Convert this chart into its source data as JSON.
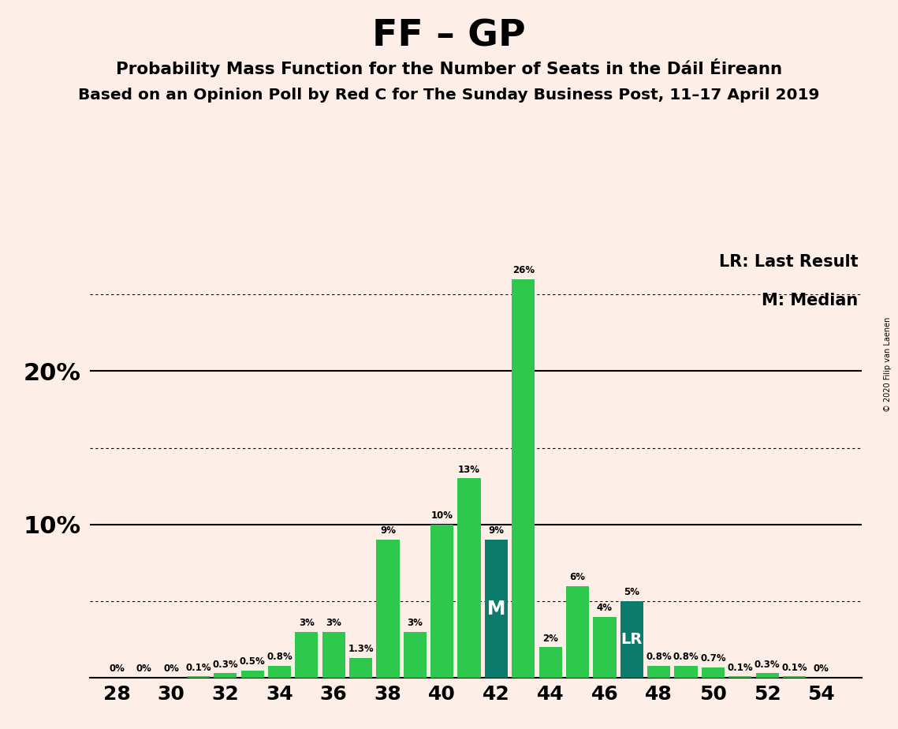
{
  "title": "FF – GP",
  "subtitle1": "Probability Mass Function for the Number of Seats in the Dáil Éireann",
  "subtitle2": "Based on an Opinion Poll by Red C for The Sunday Business Post, 11–17 April 2019",
  "copyright": "© 2020 Filip van Laenen",
  "seats": [
    28,
    29,
    30,
    31,
    32,
    33,
    34,
    35,
    36,
    37,
    38,
    39,
    40,
    41,
    42,
    43,
    44,
    45,
    46,
    47,
    48,
    49,
    50,
    51,
    52,
    53,
    54
  ],
  "values": [
    0.0,
    0.0,
    0.0,
    0.1,
    0.3,
    0.5,
    0.8,
    3.0,
    3.0,
    1.3,
    9.0,
    3.0,
    10.0,
    13.0,
    9.0,
    26.0,
    2.0,
    6.0,
    4.0,
    5.0,
    0.8,
    0.8,
    0.7,
    0.1,
    0.3,
    0.1,
    0.0
  ],
  "labels": [
    "0%",
    "0%",
    "0%",
    "0.1%",
    "0.3%",
    "0.5%",
    "0.8%",
    "3%",
    "3%",
    "1.3%",
    "9%",
    "3%",
    "10%",
    "13%",
    "9%",
    "26%",
    "2%",
    "6%",
    "4%",
    "5%",
    "0.8%",
    "0.8%",
    "0.7%",
    "0.1%",
    "0.3%",
    "0.1%",
    "0%"
  ],
  "median_seat": 42,
  "last_result_seat": 47,
  "bar_color_light": "#2DC84D",
  "bar_color_dark": "#0D7B6B",
  "background_color": "#FDEEE8",
  "solid_lines": [
    10,
    20
  ],
  "dotted_lines": [
    5,
    15,
    25
  ],
  "legend_lr": "LR: Last Result",
  "legend_m": "M: Median",
  "xlim_min": 27,
  "xlim_max": 55.5,
  "ylim_min": 0,
  "ylim_max": 28.5,
  "ytick_positions": [
    10,
    20
  ],
  "ytick_labels": [
    "10%",
    "20%"
  ],
  "xtick_positions": [
    28,
    30,
    32,
    34,
    36,
    38,
    40,
    42,
    44,
    46,
    48,
    50,
    52,
    54
  ]
}
